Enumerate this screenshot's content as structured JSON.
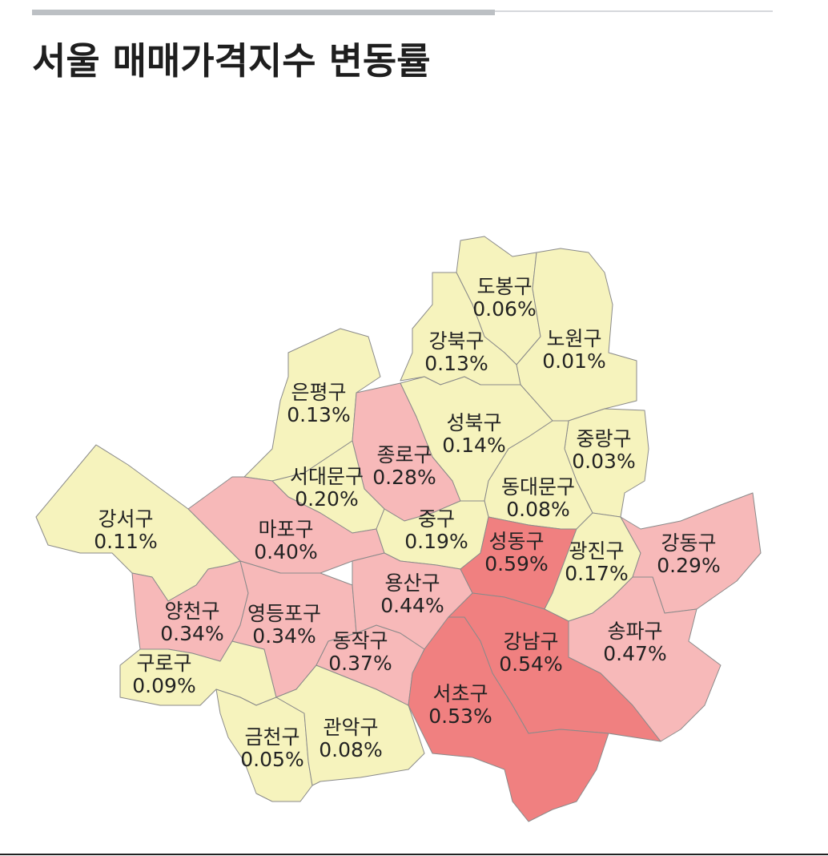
{
  "title": "서울 매매가격지수 변동률",
  "districts": [
    {
      "name": "도봉구",
      "value": 0.06,
      "value_label": "0.06%"
    },
    {
      "name": "노원구",
      "value": 0.01,
      "value_label": "0.01%"
    },
    {
      "name": "강북구",
      "value": 0.13,
      "value_label": "0.13%"
    },
    {
      "name": "은평구",
      "value": 0.13,
      "value_label": "0.13%"
    },
    {
      "name": "종로구",
      "value": 0.28,
      "value_label": "0.28%"
    },
    {
      "name": "성북구",
      "value": 0.14,
      "value_label": "0.14%"
    },
    {
      "name": "중랑구",
      "value": 0.03,
      "value_label": "0.03%"
    },
    {
      "name": "동대문구",
      "value": 0.08,
      "value_label": "0.08%"
    },
    {
      "name": "서대문구",
      "value": 0.2,
      "value_label": "0.20%"
    },
    {
      "name": "마포구",
      "value": 0.4,
      "value_label": "0.40%"
    },
    {
      "name": "강서구",
      "value": 0.11,
      "value_label": "0.11%"
    },
    {
      "name": "양천구",
      "value": 0.34,
      "value_label": "0.34%"
    },
    {
      "name": "구로구",
      "value": 0.09,
      "value_label": "0.09%"
    },
    {
      "name": "영등포구",
      "value": 0.34,
      "value_label": "0.34%"
    },
    {
      "name": "금천구",
      "value": 0.05,
      "value_label": "0.05%"
    },
    {
      "name": "관악구",
      "value": 0.08,
      "value_label": "0.08%"
    },
    {
      "name": "동작구",
      "value": 0.37,
      "value_label": "0.37%"
    },
    {
      "name": "중구",
      "value": 0.19,
      "value_label": "0.19%"
    },
    {
      "name": "용산구",
      "value": 0.44,
      "value_label": "0.44%"
    },
    {
      "name": "성동구",
      "value": 0.59,
      "value_label": "0.59%"
    },
    {
      "name": "광진구",
      "value": 0.17,
      "value_label": "0.17%"
    },
    {
      "name": "강동구",
      "value": 0.29,
      "value_label": "0.29%"
    },
    {
      "name": "송파구",
      "value": 0.47,
      "value_label": "0.47%"
    },
    {
      "name": "강남구",
      "value": 0.54,
      "value_label": "0.54%"
    },
    {
      "name": "서초구",
      "value": 0.53,
      "value_label": "0.53%"
    }
  ]
}
